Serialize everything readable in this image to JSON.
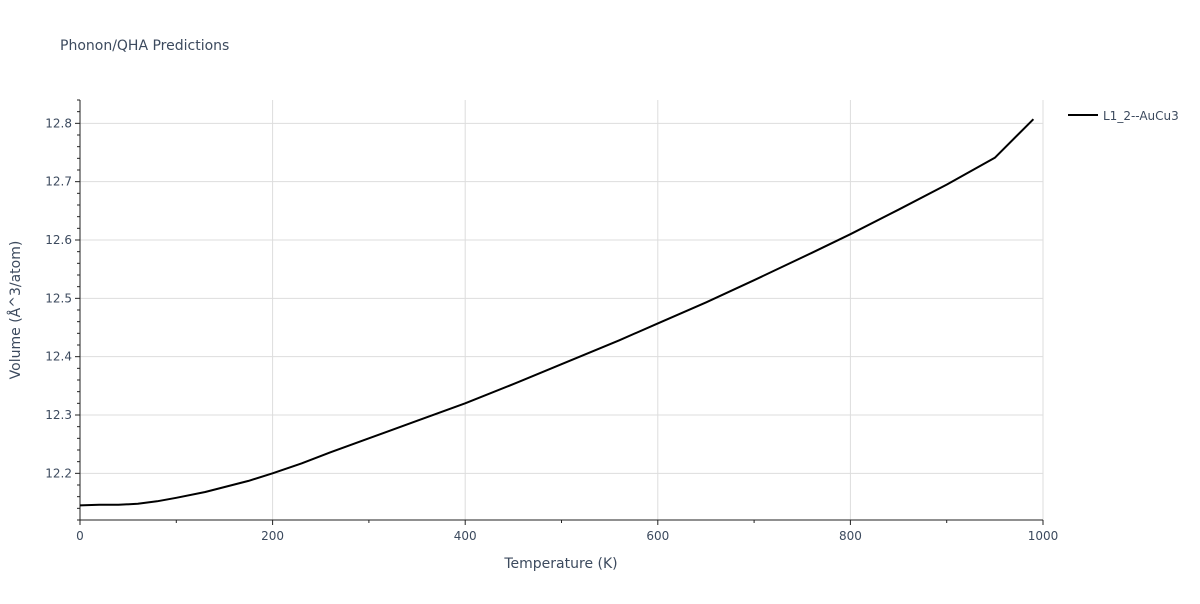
{
  "chart_data": {
    "type": "line",
    "title": "Phonon/QHA Predictions",
    "xlabel": "Temperature (K)",
    "ylabel": "Volume (Å^3/atom)",
    "xlim": [
      0,
      1000
    ],
    "ylim": [
      12.12,
      12.84
    ],
    "x_ticks": [
      0,
      200,
      400,
      600,
      800,
      1000
    ],
    "y_ticks": [
      12.2,
      12.3,
      12.4,
      12.5,
      12.6,
      12.7,
      12.8
    ],
    "grid": true,
    "legend_position": "top-right",
    "series": [
      {
        "name": "L1_2--AuCu3",
        "color": "#000000",
        "x": [
          0,
          20,
          40,
          60,
          80,
          100,
          130,
          175,
          200,
          230,
          260,
          300,
          350,
          400,
          450,
          500,
          560,
          600,
          650,
          700,
          760,
          800,
          850,
          900,
          950,
          990
        ],
        "y": [
          12.145,
          12.146,
          12.146,
          12.148,
          12.152,
          12.158,
          12.168,
          12.187,
          12.2,
          12.217,
          12.236,
          12.26,
          12.29,
          12.32,
          12.353,
          12.387,
          12.428,
          12.457,
          12.493,
          12.531,
          12.578,
          12.61,
          12.652,
          12.695,
          12.741,
          12.807
        ]
      }
    ]
  }
}
